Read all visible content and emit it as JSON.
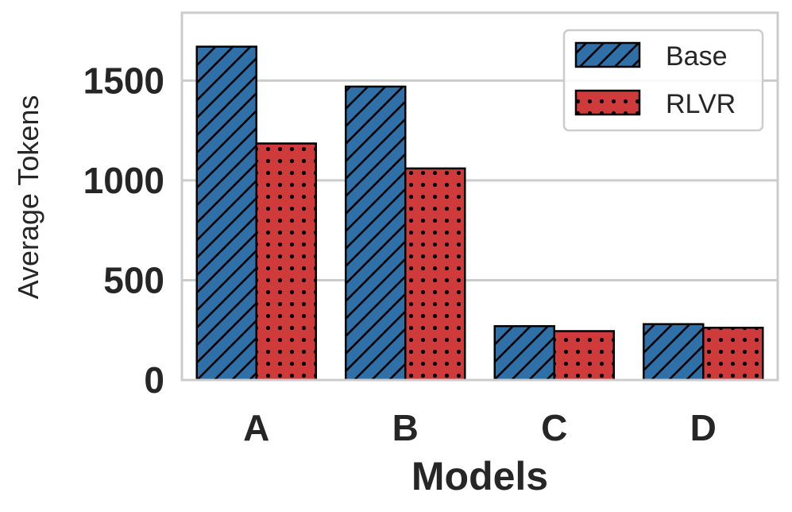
{
  "chart_data": {
    "type": "bar",
    "categories": [
      "A",
      "B",
      "C",
      "D"
    ],
    "series": [
      {
        "name": "Base",
        "values": [
          1670,
          1470,
          270,
          280
        ],
        "color": "#2f70a8",
        "hatch": "diagonal"
      },
      {
        "name": "RLVR",
        "values": [
          1185,
          1060,
          245,
          262
        ],
        "color": "#cf3b3b",
        "hatch": "dots"
      }
    ],
    "xlabel": "Models",
    "ylabel": "Average Tokens",
    "ylim": [
      0,
      1840
    ],
    "yticks": [
      0,
      500,
      1000,
      1500
    ],
    "grid": true,
    "legend_position": "top-right"
  }
}
